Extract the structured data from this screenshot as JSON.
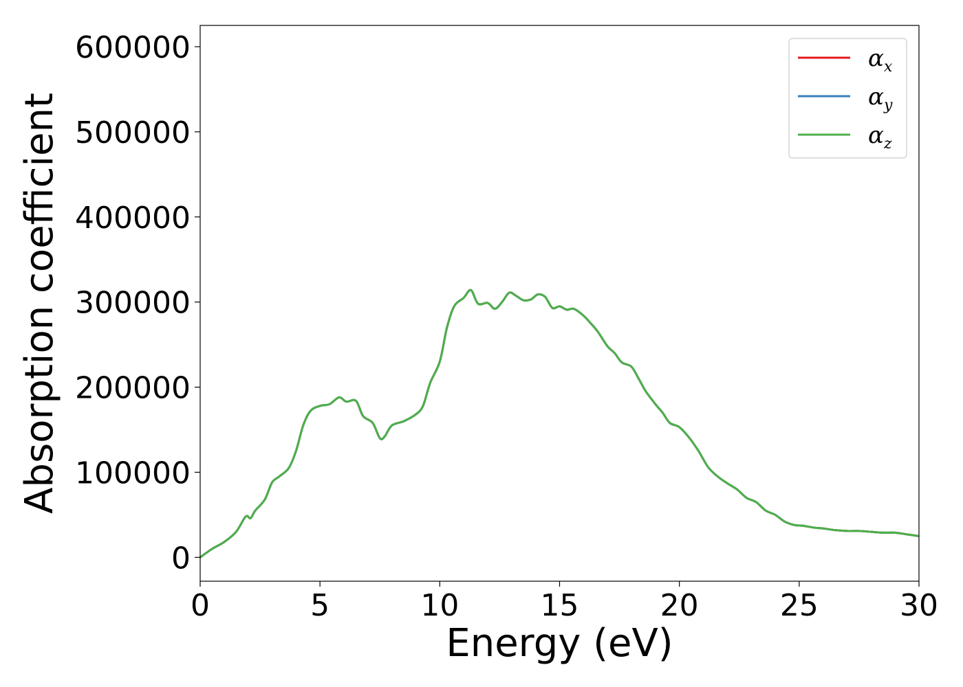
{
  "chart_data": {
    "type": "line",
    "title": "",
    "xlabel": "Energy (eV)",
    "ylabel": "Absorption coefficient",
    "xlim": [
      0,
      30
    ],
    "ylim": [
      -28000,
      625000
    ],
    "xticks": [
      0,
      5,
      10,
      15,
      20,
      25,
      30
    ],
    "yticks": [
      0,
      100000,
      200000,
      300000,
      400000,
      500000,
      600000
    ],
    "grid": false,
    "legend_position": "top-right",
    "series": [
      {
        "name": "αx",
        "symbol": "α",
        "subscript": "x",
        "color": "#e41a1c",
        "x": [
          0,
          0.5,
          1,
          1.5,
          1.9,
          2.1,
          2.3,
          2.7,
          3,
          3.3,
          3.7,
          4,
          4.3,
          4.6,
          5,
          5.4,
          5.8,
          6.1,
          6.5,
          6.8,
          7.2,
          7.5,
          7.7,
          8,
          8.5,
          9,
          9.3,
          9.6,
          10,
          10.3,
          10.6,
          11,
          11.3,
          11.6,
          12,
          12.3,
          12.6,
          12.9,
          13.2,
          13.5,
          13.8,
          14.1,
          14.4,
          14.7,
          15,
          15.3,
          15.6,
          16,
          16.3,
          16.6,
          17,
          17.3,
          17.6,
          18,
          18.3,
          18.6,
          19,
          19.3,
          19.6,
          20,
          20.4,
          20.8,
          21.2,
          21.6,
          22,
          22.4,
          22.8,
          23.2,
          23.6,
          24,
          24.4,
          24.8,
          25.2,
          25.6,
          26,
          26.5,
          27,
          27.5,
          28,
          28.5,
          29,
          29.5,
          30
        ],
        "values": [
          0,
          10000,
          18000,
          30000,
          48000,
          46000,
          55000,
          68000,
          88000,
          95000,
          105000,
          125000,
          155000,
          172000,
          178000,
          180000,
          188000,
          183000,
          184000,
          166000,
          158000,
          140000,
          142000,
          155000,
          160000,
          168000,
          178000,
          205000,
          230000,
          270000,
          295000,
          305000,
          314000,
          298000,
          299000,
          292000,
          300000,
          311000,
          307000,
          302000,
          303000,
          309000,
          306000,
          293000,
          295000,
          291000,
          292000,
          284000,
          275000,
          265000,
          248000,
          240000,
          229000,
          224000,
          210000,
          195000,
          180000,
          170000,
          158000,
          153000,
          141000,
          125000,
          106000,
          95000,
          87000,
          80000,
          70000,
          65000,
          55000,
          50000,
          42000,
          38000,
          37000,
          35000,
          34000,
          32000,
          31000,
          31000,
          30000,
          29000,
          29000,
          27000,
          25000
        ]
      },
      {
        "name": "αy",
        "symbol": "α",
        "subscript": "y",
        "color": "#377eb8",
        "x": [
          0,
          0.5,
          1,
          1.5,
          1.9,
          2.1,
          2.3,
          2.7,
          3,
          3.3,
          3.7,
          4,
          4.3,
          4.6,
          5,
          5.4,
          5.8,
          6.1,
          6.5,
          6.8,
          7.2,
          7.5,
          7.7,
          8,
          8.5,
          9,
          9.3,
          9.6,
          10,
          10.3,
          10.6,
          11,
          11.3,
          11.6,
          12,
          12.3,
          12.6,
          12.9,
          13.2,
          13.5,
          13.8,
          14.1,
          14.4,
          14.7,
          15,
          15.3,
          15.6,
          16,
          16.3,
          16.6,
          17,
          17.3,
          17.6,
          18,
          18.3,
          18.6,
          19,
          19.3,
          19.6,
          20,
          20.4,
          20.8,
          21.2,
          21.6,
          22,
          22.4,
          22.8,
          23.2,
          23.6,
          24,
          24.4,
          24.8,
          25.2,
          25.6,
          26,
          26.5,
          27,
          27.5,
          28,
          28.5,
          29,
          29.5,
          30
        ],
        "values": [
          0,
          10000,
          18000,
          30000,
          48000,
          46000,
          55000,
          68000,
          88000,
          95000,
          105000,
          125000,
          155000,
          172000,
          178000,
          180000,
          188000,
          183000,
          184000,
          166000,
          158000,
          140000,
          142000,
          155000,
          160000,
          168000,
          178000,
          205000,
          230000,
          270000,
          295000,
          305000,
          314000,
          298000,
          299000,
          292000,
          300000,
          311000,
          307000,
          302000,
          303000,
          309000,
          306000,
          293000,
          295000,
          291000,
          292000,
          284000,
          275000,
          265000,
          248000,
          240000,
          229000,
          224000,
          210000,
          195000,
          180000,
          170000,
          158000,
          153000,
          141000,
          125000,
          106000,
          95000,
          87000,
          80000,
          70000,
          65000,
          55000,
          50000,
          42000,
          38000,
          37000,
          35000,
          34000,
          32000,
          31000,
          31000,
          30000,
          29000,
          29000,
          27000,
          25000
        ]
      },
      {
        "name": "αz",
        "symbol": "α",
        "subscript": "z",
        "color": "#4daf4a",
        "x": [
          0,
          0.5,
          1,
          1.5,
          1.9,
          2.1,
          2.3,
          2.7,
          3,
          3.3,
          3.7,
          4,
          4.3,
          4.6,
          5,
          5.4,
          5.8,
          6.1,
          6.5,
          6.8,
          7.2,
          7.5,
          7.7,
          8,
          8.5,
          9,
          9.3,
          9.6,
          10,
          10.3,
          10.6,
          11,
          11.3,
          11.6,
          12,
          12.3,
          12.6,
          12.9,
          13.2,
          13.5,
          13.8,
          14.1,
          14.4,
          14.7,
          15,
          15.3,
          15.6,
          16,
          16.3,
          16.6,
          17,
          17.3,
          17.6,
          18,
          18.3,
          18.6,
          19,
          19.3,
          19.6,
          20,
          20.4,
          20.8,
          21.2,
          21.6,
          22,
          22.4,
          22.8,
          23.2,
          23.6,
          24,
          24.4,
          24.8,
          25.2,
          25.6,
          26,
          26.5,
          27,
          27.5,
          28,
          28.5,
          29,
          29.5,
          30
        ],
        "values": [
          0,
          10000,
          18000,
          30000,
          48000,
          46000,
          55000,
          68000,
          88000,
          95000,
          105000,
          125000,
          155000,
          172000,
          178000,
          180000,
          188000,
          183000,
          184000,
          166000,
          158000,
          140000,
          142000,
          155000,
          160000,
          168000,
          178000,
          205000,
          230000,
          270000,
          295000,
          305000,
          314000,
          298000,
          299000,
          292000,
          300000,
          311000,
          307000,
          302000,
          303000,
          309000,
          306000,
          293000,
          295000,
          291000,
          292000,
          284000,
          275000,
          265000,
          248000,
          240000,
          229000,
          224000,
          210000,
          195000,
          180000,
          170000,
          158000,
          153000,
          141000,
          125000,
          106000,
          95000,
          87000,
          80000,
          70000,
          65000,
          55000,
          50000,
          42000,
          38000,
          37000,
          35000,
          34000,
          32000,
          31000,
          31000,
          30000,
          29000,
          29000,
          27000,
          25000
        ]
      }
    ]
  }
}
